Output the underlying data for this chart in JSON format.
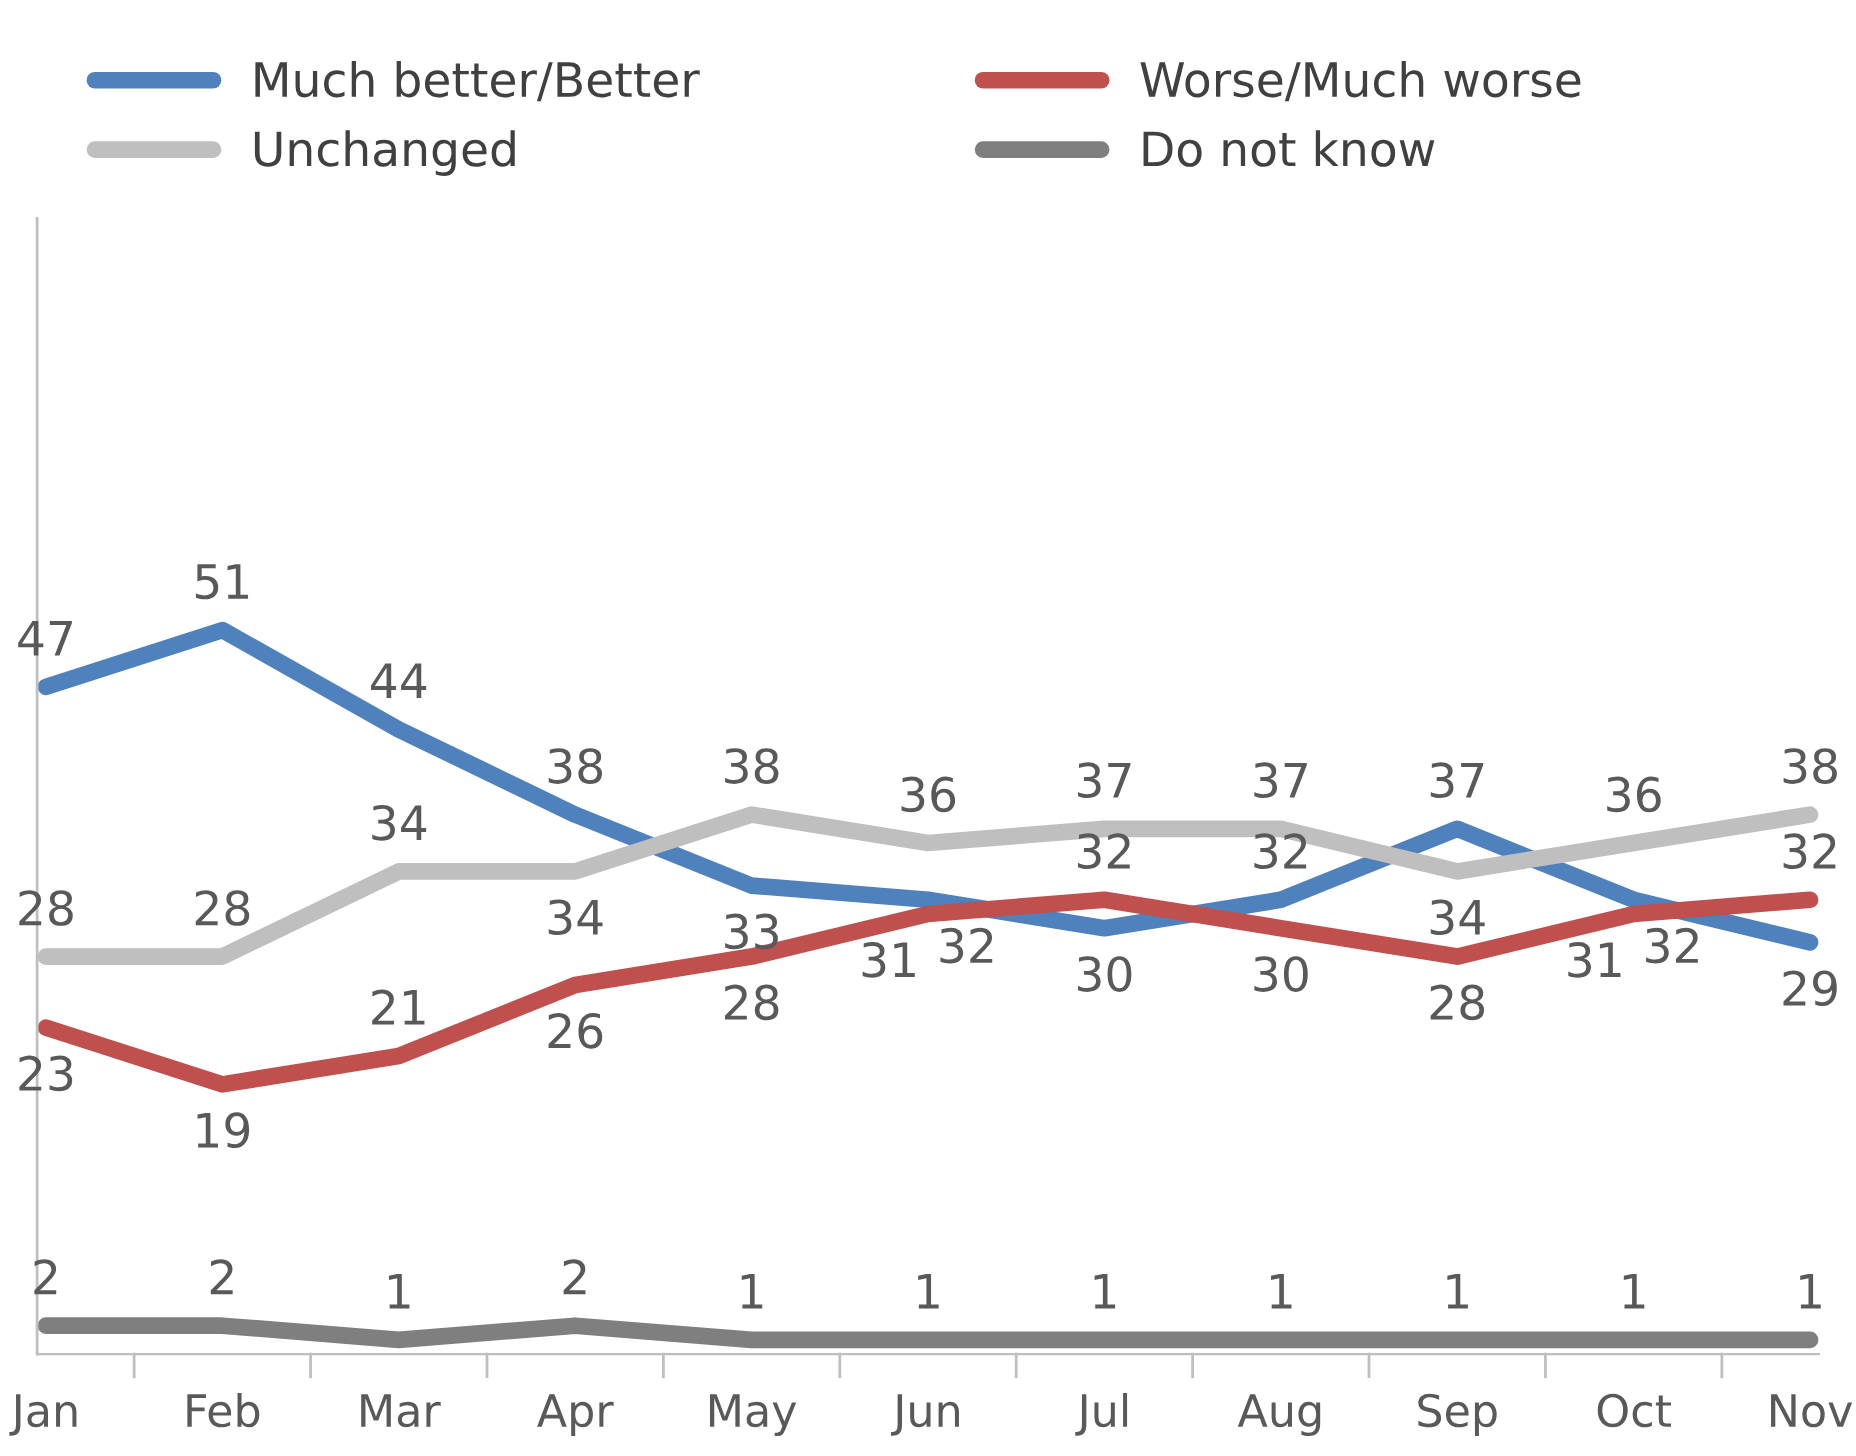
{
  "chart_data": {
    "type": "line",
    "categories": [
      "Jan",
      "Feb",
      "Mar",
      "Apr",
      "May",
      "Jun",
      "Jul",
      "Aug",
      "Sep",
      "Oct",
      "Nov"
    ],
    "series": [
      {
        "name": "Much better/Better",
        "color": "#4f81bd",
        "values": [
          47,
          51,
          44,
          38,
          33,
          32,
          30,
          32,
          37,
          32,
          29
        ]
      },
      {
        "name": "Unchanged",
        "color": "#bfbfbf",
        "values": [
          28,
          28,
          34,
          34,
          38,
          36,
          37,
          37,
          34,
          36,
          38
        ]
      },
      {
        "name": "Worse/Much worse",
        "color": "#c0504d",
        "values": [
          23,
          19,
          21,
          26,
          28,
          31,
          32,
          30,
          28,
          31,
          32
        ]
      },
      {
        "name": "Do not know",
        "color": "#7f7f7f",
        "values": [
          2,
          2,
          1,
          2,
          1,
          1,
          1,
          1,
          1,
          1,
          1
        ]
      }
    ],
    "ylim": [
      0,
      80
    ],
    "tick_labels": "x",
    "data_labels": true,
    "legend": "top",
    "grid": false,
    "marker": "none",
    "line_style": "solid"
  }
}
